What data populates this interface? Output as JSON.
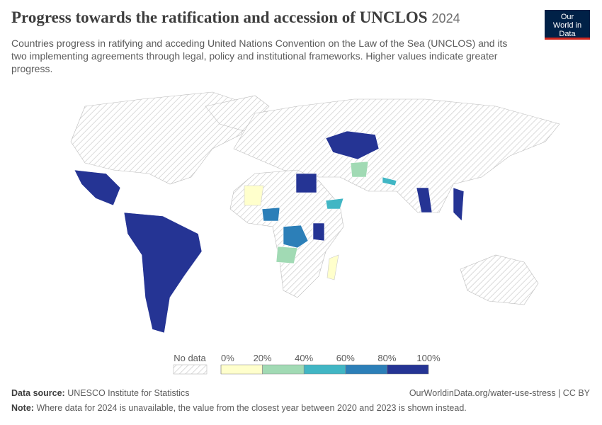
{
  "header": {
    "title": "Progress towards the ratification and accession of UNCLOS",
    "year": "2024",
    "subtitle": "Countries progress in ratifying and acceding United Nations Convention on the Law of the Sea (UNCLOS) and its two implementing agreements through legal, policy and institutional frameworks. Higher values indicate greater progress.",
    "logo": "Our World in Data"
  },
  "legend": {
    "no_data": "No data",
    "ticks": [
      {
        "value": 0,
        "label": "0%"
      },
      {
        "value": 20,
        "label": "20%"
      },
      {
        "value": 40,
        "label": "40%"
      },
      {
        "value": 60,
        "label": "60%"
      },
      {
        "value": 80,
        "label": "80%"
      },
      {
        "value": 100,
        "label": "100%"
      }
    ],
    "colors": [
      "#ffffcc",
      "#a1dab4",
      "#41b6c4",
      "#2c7fb8",
      "#253494"
    ]
  },
  "footer": {
    "source_label": "Data source:",
    "source": "UNESCO Institute for Statistics",
    "url": "OurWorldinData.org/water-use-stress | CC BY",
    "note_label": "Note:",
    "note": "Where data for 2024 is unavailable, the value from the closest year between 2020 and 2023 is shown instead."
  }
}
